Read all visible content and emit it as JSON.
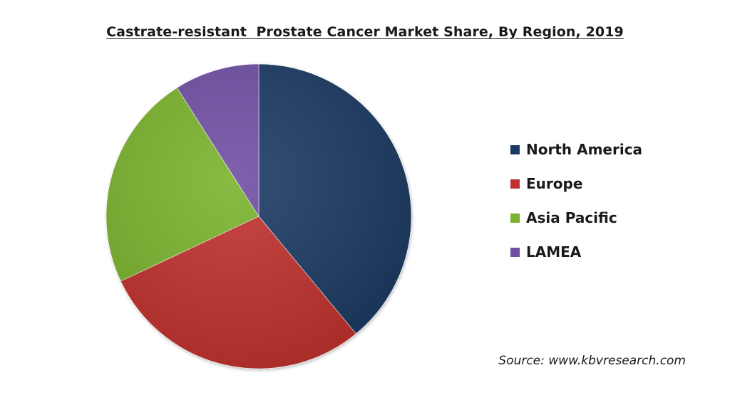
{
  "chart_data": {
    "type": "pie",
    "title": "Castrate-resistant  Prostate Cancer Market Share, By Region, 2019",
    "categories": [
      "North America",
      "Europe",
      "Asia Pacific",
      "LAMEA"
    ],
    "values": [
      39,
      29,
      23,
      9
    ],
    "colors": [
      "#1b3a63",
      "#c0312e",
      "#7ab32e",
      "#7050a3"
    ],
    "start_angle_deg": 0,
    "direction": "clockwise",
    "legend_position": "right"
  },
  "source": "Source: www.kbvresearch.com"
}
